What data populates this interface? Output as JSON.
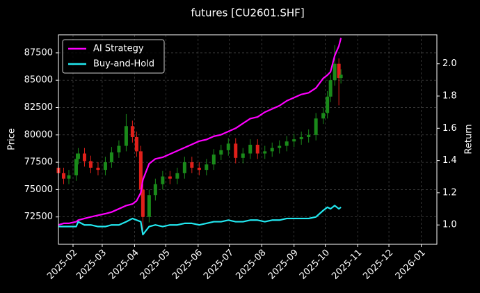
{
  "chart_data": {
    "type": "candlestick",
    "title": "futures [CU2601.SHF]",
    "ylabel": "Price",
    "y2label": "Return",
    "x": [
      17,
      22,
      27,
      34,
      36,
      42,
      48,
      55,
      62,
      68,
      75,
      82,
      88,
      92,
      96,
      98,
      104,
      110,
      117,
      124,
      131,
      138,
      145,
      152,
      159,
      166,
      173,
      180,
      187,
      194,
      201,
      208,
      215,
      222,
      229,
      236,
      243,
      250,
      257,
      264,
      271,
      275,
      278,
      282,
      286,
      288
    ],
    "open": [
      77000,
      76500,
      76000,
      76300,
      77800,
      78300,
      77600,
      77000,
      76800,
      77500,
      78400,
      79000,
      80800,
      79800,
      78500,
      75000,
      72500,
      74500,
      75500,
      76200,
      76000,
      76500,
      77500,
      77000,
      76800,
      77300,
      78200,
      78600,
      79200,
      77900,
      78300,
      79100,
      78300,
      78500,
      78800,
      79000,
      79400,
      79600,
      79800,
      80000,
      81500,
      82000,
      83500,
      85000,
      86500,
      85200
    ],
    "high": [
      77500,
      77000,
      76800,
      78300,
      78800,
      78800,
      78100,
      77500,
      78000,
      78900,
      79500,
      81900,
      81300,
      80300,
      79000,
      75500,
      75000,
      76000,
      76700,
      76700,
      77000,
      78000,
      78000,
      77500,
      77800,
      78700,
      79100,
      79700,
      79700,
      78800,
      79600,
      79600,
      79000,
      79300,
      79500,
      79900,
      80100,
      80300,
      80500,
      82000,
      82500,
      84000,
      85500,
      88200,
      87000,
      86000
    ],
    "low": [
      76000,
      75500,
      75500,
      75800,
      77300,
      77100,
      76500,
      76300,
      76300,
      77000,
      77900,
      78500,
      79300,
      78000,
      74500,
      71000,
      72000,
      74000,
      75000,
      75500,
      75500,
      76000,
      76500,
      76300,
      76300,
      76800,
      77700,
      78100,
      77400,
      77400,
      77800,
      77800,
      77800,
      78000,
      78300,
      78500,
      78900,
      79100,
      79300,
      79500,
      81000,
      81500,
      83000,
      84500,
      82700,
      84700
    ],
    "close": [
      76500,
      76000,
      76300,
      77800,
      78300,
      77600,
      77000,
      76800,
      77500,
      78400,
      79000,
      80800,
      79800,
      78500,
      75000,
      72500,
      74500,
      75500,
      76200,
      76000,
      76500,
      77500,
      77000,
      76800,
      77300,
      78200,
      78600,
      79200,
      77900,
      78300,
      79100,
      78300,
      78500,
      78800,
      79000,
      79400,
      79600,
      79800,
      80000,
      81500,
      82000,
      83500,
      85000,
      86500,
      85200,
      85500
    ],
    "up_color": "#1a8a1a",
    "down_color": "#e0201a",
    "series": [
      {
        "name": "AI Strategy",
        "color": "#ff00ff",
        "axis": "y2",
        "values": [
          1.0,
          1.01,
          1.01,
          1.02,
          1.03,
          1.04,
          1.05,
          1.06,
          1.07,
          1.08,
          1.1,
          1.12,
          1.13,
          1.15,
          1.2,
          1.28,
          1.38,
          1.41,
          1.42,
          1.44,
          1.46,
          1.48,
          1.5,
          1.52,
          1.53,
          1.55,
          1.56,
          1.58,
          1.6,
          1.63,
          1.66,
          1.67,
          1.7,
          1.72,
          1.74,
          1.77,
          1.79,
          1.81,
          1.82,
          1.85,
          1.91,
          1.93,
          1.95,
          2.05,
          2.11,
          2.16
        ]
      },
      {
        "name": "Buy-and-Hold",
        "color": "#22e8f0",
        "axis": "y2",
        "values": [
          0.99,
          0.99,
          0.99,
          0.99,
          1.02,
          1.0,
          1.0,
          0.99,
          0.99,
          1.0,
          1.0,
          1.02,
          1.04,
          1.03,
          1.02,
          0.94,
          0.99,
          1.0,
          0.99,
          1.0,
          1.0,
          1.01,
          1.01,
          1.0,
          1.01,
          1.02,
          1.02,
          1.03,
          1.02,
          1.02,
          1.03,
          1.03,
          1.02,
          1.03,
          1.03,
          1.04,
          1.04,
          1.04,
          1.04,
          1.05,
          1.09,
          1.11,
          1.1,
          1.12,
          1.1,
          1.11
        ]
      }
    ],
    "xlim": [
      17,
      380
    ],
    "xticks": [
      {
        "value": 31,
        "label": "2025-02"
      },
      {
        "value": 59,
        "label": "2025-03"
      },
      {
        "value": 90,
        "label": "2025-04"
      },
      {
        "value": 120,
        "label": "2025-05"
      },
      {
        "value": 151,
        "label": "2025-06"
      },
      {
        "value": 181,
        "label": "2025-07"
      },
      {
        "value": 212,
        "label": "2025-08"
      },
      {
        "value": 243,
        "label": "2025-09"
      },
      {
        "value": 273,
        "label": "2025-10"
      },
      {
        "value": 304,
        "label": "2025-11"
      },
      {
        "value": 334,
        "label": "2025-12"
      },
      {
        "value": 365,
        "label": "2026-01"
      }
    ],
    "ylim": [
      70000,
      89150
    ],
    "yticks": [
      72500,
      75000,
      77500,
      80000,
      82500,
      85000,
      87500
    ],
    "y2lim": [
      0.88,
      2.18
    ],
    "y2ticks": [
      {
        "value": 1.0,
        "label": "1.0"
      },
      {
        "value": 1.2,
        "label": "1.2"
      },
      {
        "value": 1.4,
        "label": "1.4"
      },
      {
        "value": 1.6,
        "label": "1.6"
      },
      {
        "value": 1.8,
        "label": "1.8"
      },
      {
        "value": 2.0,
        "label": "2.0"
      }
    ],
    "grid": true,
    "legend": "upper left"
  }
}
